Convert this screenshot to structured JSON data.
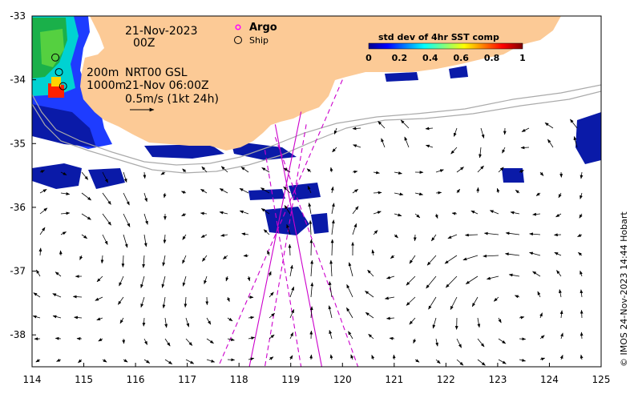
{
  "date_line1": "21-Nov-2023",
  "date_line2": "00Z",
  "depth_label": "200m",
  "depth_label2": "1000m",
  "product_label": "NRT00 GSL",
  "product_time": "21-Nov 06:00Z",
  "scale_label": "0.5m/s (1kt 24h)",
  "legend": {
    "argo": "Argo",
    "ship": "Ship",
    "argo_color": "#ff00ff"
  },
  "colorbar": {
    "title": "std dev of 4hr SST comp",
    "ticks": [
      "0",
      "0.2",
      "0.4",
      "0.6",
      "0.8",
      "1"
    ]
  },
  "credit": "© IMOS 24-Nov-2023 14:44 Hobart",
  "land_color": "#fcca96",
  "track_color": "#cc00cc",
  "chart_data": {
    "type": "map",
    "xlim": [
      114,
      125
    ],
    "ylim": [
      -38.5,
      -33
    ],
    "x_ticks": [
      114,
      115,
      116,
      117,
      118,
      119,
      120,
      121,
      122,
      123,
      124,
      125
    ],
    "y_ticks": [
      -33,
      -34,
      -35,
      -36,
      -37,
      -38
    ],
    "ship_positions": [
      [
        114.45,
        -33.65
      ],
      [
        114.52,
        -33.88
      ],
      [
        114.6,
        -34.1
      ]
    ],
    "tracks": [
      {
        "style": "solid",
        "from": [
          118.7,
          -34.7
        ],
        "to": [
          119.6,
          -38.5
        ]
      },
      {
        "style": "solid",
        "from": [
          119.2,
          -34.5
        ],
        "to": [
          118.2,
          -38.5
        ]
      },
      {
        "style": "dashed",
        "from": [
          118.5,
          -35.1
        ],
        "to": [
          119.2,
          -38.5
        ]
      },
      {
        "style": "dashed",
        "from": [
          120.0,
          -34.0
        ],
        "to": [
          117.6,
          -38.5
        ]
      },
      {
        "style": "dashed",
        "from": [
          118.7,
          -34.9
        ],
        "to": [
          120.3,
          -38.5
        ]
      },
      {
        "style": "dashed",
        "from": [
          119.3,
          -34.7
        ],
        "to": [
          118.5,
          -38.5
        ]
      }
    ]
  }
}
